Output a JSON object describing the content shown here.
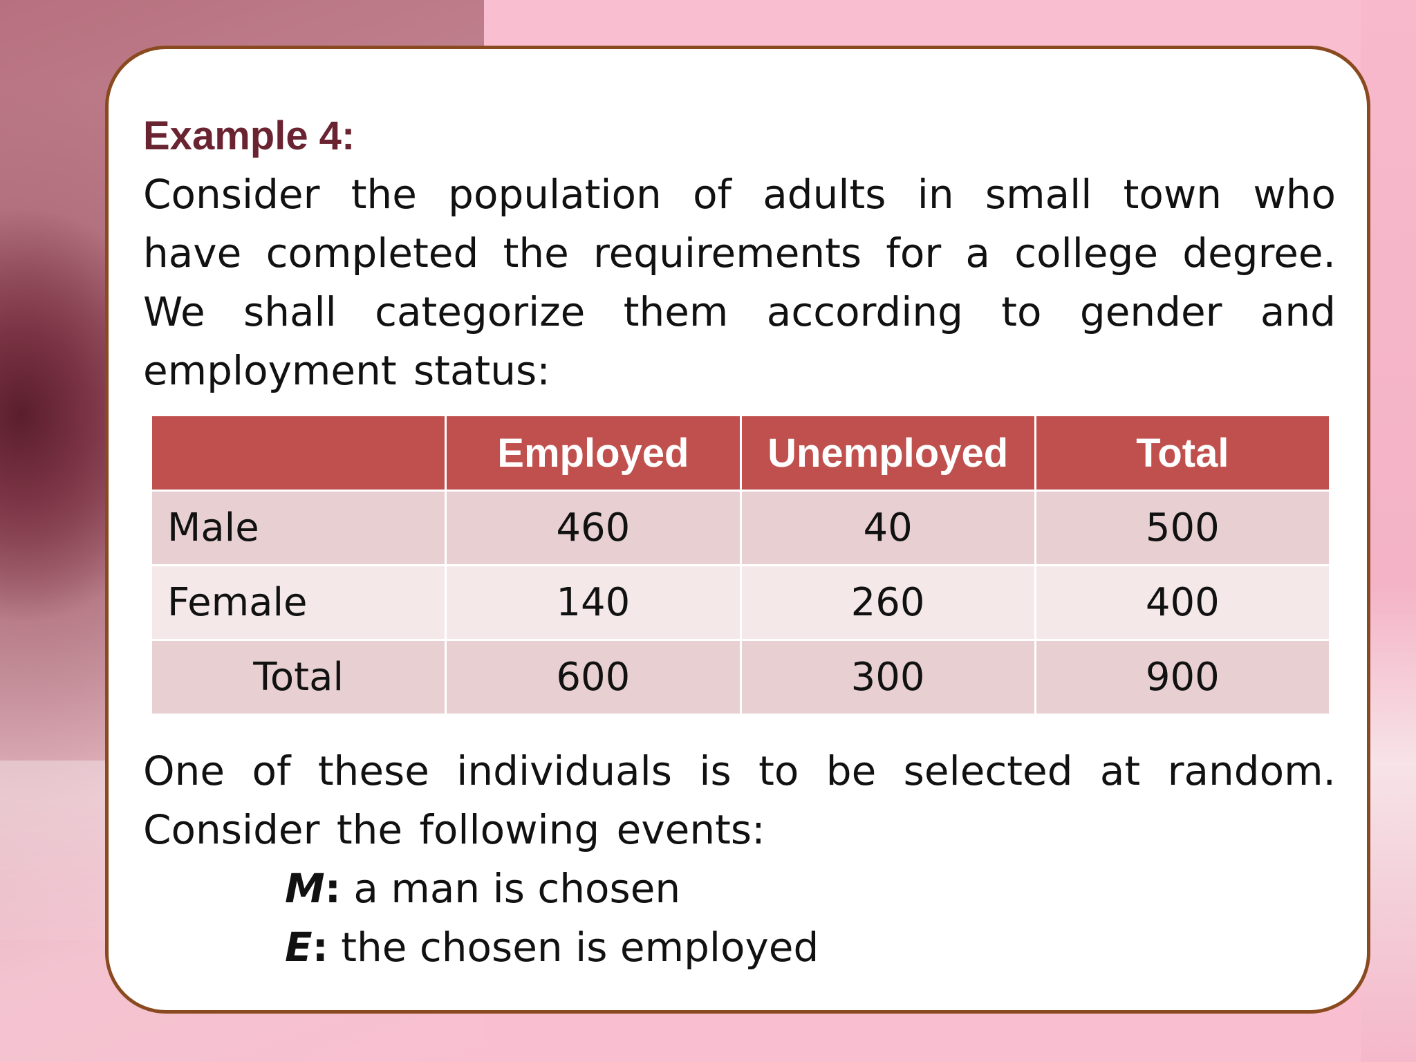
{
  "slide": {
    "title": "Example 4:",
    "intro": "Consider the population of adults in small town who have completed the requirements for a college degree. We shall categorize them according to gender and employment status:",
    "table": {
      "headers": [
        "",
        "Employed",
        "Unemployed",
        "Total"
      ],
      "rows": [
        {
          "label": "Male",
          "employed": "460",
          "unemployed": "40",
          "total": "500"
        },
        {
          "label": "Female",
          "employed": "140",
          "unemployed": "260",
          "total": "400"
        },
        {
          "label": "Total",
          "employed": "600",
          "unemployed": "300",
          "total": "900"
        }
      ]
    },
    "outro": "One of these individuals is to be selected at random. Consider the following events:",
    "events": [
      {
        "symbol": "M",
        "colon": ":",
        "text": " a man is chosen"
      },
      {
        "symbol": "E",
        "colon": ":",
        "text": " the chosen is employed"
      }
    ]
  },
  "colors": {
    "background": "#f9bfd0",
    "card_border": "#8a4a1f",
    "title": "#6a2330",
    "table_header": "#c0504d",
    "table_row_odd": "#e8d0d2",
    "table_row_even": "#f4e8e9"
  }
}
